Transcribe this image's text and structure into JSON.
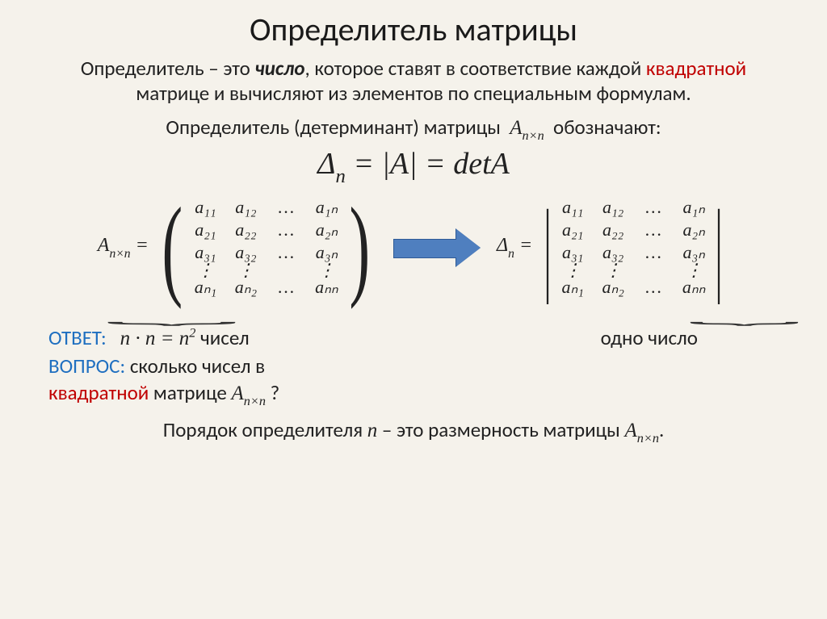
{
  "colors": {
    "background": "#f5f2eb",
    "text": "#222222",
    "accent_red": "#c00000",
    "accent_blue": "#1f6fc0",
    "arrow_fill": "#4f7fbf",
    "arrow_border": "#2e5a96"
  },
  "title": "Определитель матрицы",
  "intro": {
    "part1": "Определитель – это ",
    "bold_italic": "число",
    "part2": ", которое ставят в соответствие каждой ",
    "red_word": "квадратной",
    "part3": " матрице и вычисляют из элементов по специальным формулам."
  },
  "notation": {
    "prefix": "Определитель (детерминант) матрицы",
    "symbol_base": "A",
    "symbol_sub": "n×n",
    "suffix": "обозначают:"
  },
  "formula": {
    "delta": "Δ",
    "delta_sub": "n",
    "eq1": " = |A| = detA"
  },
  "matrix": {
    "left_label_base": "A",
    "left_label_sub": "n×n",
    "right_label": "Δ",
    "right_label_sub": "n",
    "cells": [
      [
        "a₁₁",
        "a₁₂",
        "…",
        "a₁ₙ"
      ],
      [
        "a₂₁",
        "a₂₂",
        "…",
        "a₂ₙ"
      ],
      [
        "a₃₁",
        "a₃₂",
        "…",
        "a₃ₙ"
      ],
      [
        "⋮",
        "⋮",
        " ",
        "⋮"
      ],
      [
        "aₙ₁",
        "aₙ₂",
        "…",
        "aₙₙ"
      ]
    ]
  },
  "answer": {
    "label": "ОТВЕТ:",
    "expr_left": "n · n = n",
    "expr_sup": "2",
    "expr_tail": " чисел"
  },
  "one_number": "одно число",
  "question": {
    "label": "ВОПРОС:",
    "text1": " сколько чисел в",
    "red_word": "квадратной",
    "text2": " матрице ",
    "sym_base": "A",
    "sym_sub": "n×n",
    "qmark": " ?"
  },
  "order_line": {
    "part1": "Порядок определителя ",
    "n": "n",
    "part2": " – это размерность матрицы ",
    "sym_base": "A",
    "sym_sub": "n×n",
    "dot": "."
  }
}
